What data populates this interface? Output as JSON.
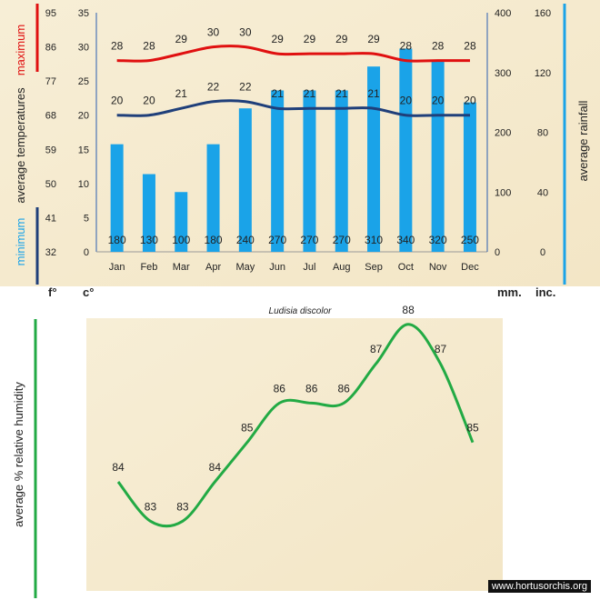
{
  "chart_data": [
    {
      "type": "bar+line",
      "title": "Ludisia discolor",
      "categories": [
        "Jan",
        "Feb",
        "Mar",
        "Apr",
        "May",
        "Jun",
        "Jul",
        "Aug",
        "Sep",
        "Oct",
        "Nov",
        "Dec"
      ],
      "series": [
        {
          "name": "maximum",
          "kind": "line",
          "color": "#e01010",
          "values": [
            28,
            28,
            29,
            30,
            30,
            29,
            29,
            29,
            29,
            28,
            28,
            28
          ]
        },
        {
          "name": "minimum",
          "kind": "line",
          "color": "#1f3f7a",
          "values": [
            20,
            20,
            21,
            22,
            22,
            21,
            21,
            21,
            21,
            20,
            20,
            20
          ]
        },
        {
          "name": "rainfall",
          "kind": "bar",
          "color": "#1aa3e8",
          "values": [
            180,
            130,
            100,
            180,
            240,
            270,
            270,
            270,
            310,
            340,
            320,
            250
          ]
        }
      ],
      "axes": {
        "fahrenheit": {
          "range": [
            32,
            95
          ],
          "ticks": [
            32,
            41,
            50,
            59,
            68,
            77,
            86,
            95
          ],
          "unit": "f°"
        },
        "celsius": {
          "range": [
            0,
            35
          ],
          "ticks": [
            0,
            5,
            10,
            15,
            20,
            25,
            30,
            35
          ],
          "unit": "c°"
        },
        "mm": {
          "range": [
            0,
            400
          ],
          "ticks": [
            0,
            100,
            200,
            300,
            400
          ],
          "unit": "mm."
        },
        "inches": {
          "range": [
            0,
            160
          ],
          "ticks": [
            0,
            40,
            80,
            120,
            160
          ],
          "unit": "inc."
        }
      },
      "labels": {
        "max_label": "maximum",
        "avg_temp_label": "average  temperatures",
        "min_label": "minimum",
        "rain_label": "average rainfall"
      },
      "colors": {
        "max": "#e01010",
        "min": "#1f3f7a",
        "rain": "#1aa3e8",
        "background": "#f6ecd2"
      }
    },
    {
      "type": "line",
      "categories": [
        "Jan",
        "Feb",
        "Mar",
        "Apr",
        "May",
        "Jun",
        "Jul",
        "Aug",
        "Sep",
        "Oct",
        "Nov",
        "Dec"
      ],
      "series": [
        {
          "name": "humidity",
          "color": "#22aa44",
          "values": [
            84,
            83,
            83,
            84,
            85,
            86,
            86,
            86,
            87,
            88,
            87,
            85
          ]
        }
      ],
      "ylabel": "average %  relative humidity",
      "ylim": [
        82,
        89
      ]
    }
  ],
  "watermark": "www.hortusorchis.org"
}
